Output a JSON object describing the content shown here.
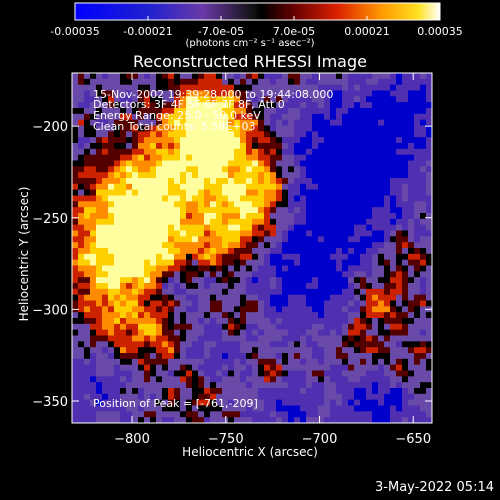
{
  "title": "Reconstructed RHESSI Image",
  "colorbar": {
    "ticks": [
      "-0.00035",
      "-0.00021",
      "-7.0e-05",
      "7.0e-05",
      "0.00021",
      "0.00035"
    ],
    "unit": "(photons cm⁻² s⁻¹ asec⁻²)",
    "range": [
      -0.00035,
      0.00035
    ]
  },
  "annotations": {
    "time": "15-Nov-2002 19:39:28.000 to 19:44:08.000",
    "detectors": "Detectors: 3F 4F 5F 6F 7F 8F, Att 0",
    "energy": "Energy Range: 25.0 - 50.0 keV",
    "clean": "Clean     Total counts: 5.59E+03",
    "peak": "Position of Peak = [-761,-209]"
  },
  "stamp": "3-May-2022 05:14",
  "chart_data": {
    "type": "heatmap",
    "title": "Reconstructed RHESSI Image",
    "xlabel": "Heliocentric X (arcsec)",
    "ylabel": "Heliocentric Y (arcsec)",
    "xlim": [
      -832,
      -640
    ],
    "ylim": [
      -362,
      -171
    ],
    "x_ticks": [
      -800,
      -750,
      -700,
      -650
    ],
    "x_tick_labels": [
      "−800",
      "−750",
      "−700",
      "−650"
    ],
    "y_ticks": [
      -350,
      -300,
      -250,
      -200
    ],
    "y_tick_labels": [
      "−350",
      "−300",
      "−250",
      "−200"
    ],
    "colormap": [
      "#0000cc",
      "#5030b0",
      "#6a4aa8",
      "#000000",
      "#550000",
      "#cc2200",
      "#ff8c00",
      "#ffd000",
      "#ffffa0"
    ],
    "peak": [
      -761,
      -209
    ],
    "grid": false
  }
}
